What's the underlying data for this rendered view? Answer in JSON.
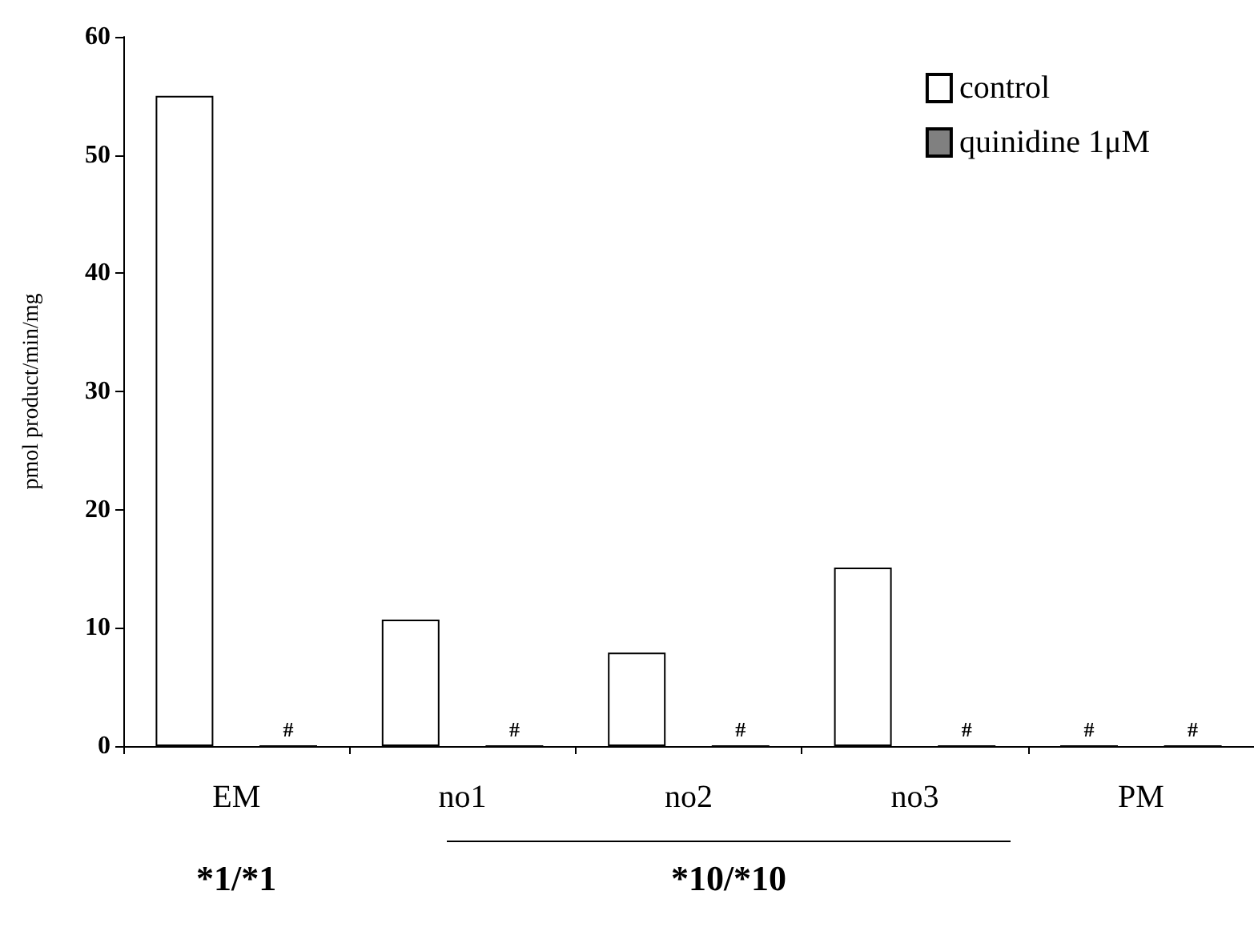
{
  "chart_data": {
    "type": "bar",
    "ylabel": "pmol product/min/mg",
    "categories": [
      "EM",
      "no1",
      "no2",
      "no3",
      "PM"
    ],
    "series": [
      {
        "name": "control",
        "color": "#ffffff",
        "values": [
          55,
          10.7,
          7.9,
          15.1,
          0
        ]
      },
      {
        "name": "quinidine 1μM",
        "color": "#808080",
        "values": [
          0,
          0,
          0,
          0,
          0
        ]
      }
    ],
    "ylim": [
      0,
      60
    ],
    "yticks": [
      0,
      10,
      20,
      30,
      40,
      50,
      60
    ],
    "grid": false,
    "legend": "top right",
    "annotations": [
      {
        "text": "#",
        "x": "EM",
        "y": 0
      },
      {
        "text": "#",
        "x": "no1",
        "y": 0
      },
      {
        "text": "#",
        "x": "no2",
        "y": 0
      },
      {
        "text": "#",
        "x": "no3",
        "y": 0
      },
      {
        "text": "#",
        "x": "PM",
        "y": 0
      },
      {
        "text": "#",
        "x": "PM",
        "y": 0
      },
      "*1/*1",
      "*10/*10"
    ]
  }
}
